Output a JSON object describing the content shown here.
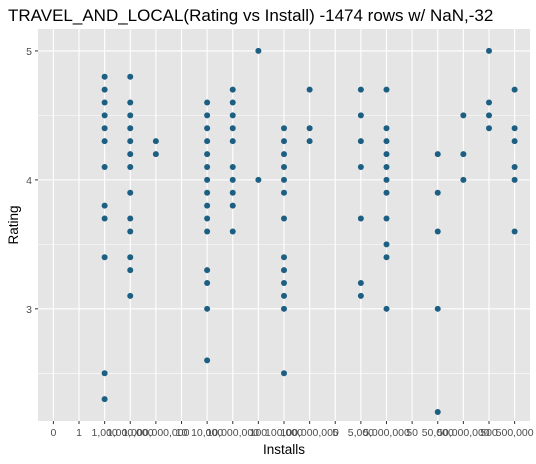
{
  "chart_data": {
    "type": "scatter",
    "title": "TRAVEL_AND_LOCAL(Rating vs Install) -1474 rows w/ NaN,-32",
    "xlabel": "Installs",
    "ylabel": "Rating",
    "x_categories": [
      "0",
      "1",
      "1,000",
      "1,000,000",
      "1,000,000,000",
      "10",
      "10,000",
      "10,000,000",
      "100",
      "100,000",
      "100,000,000",
      "5",
      "5,000",
      "5,000,000",
      "50",
      "50,000",
      "50,000,000",
      "500",
      "500,000"
    ],
    "y_ticks": [
      "3",
      "4",
      "5"
    ],
    "ylim": [
      2.13,
      5.17
    ],
    "grid": true,
    "point_color": "#1d5f82",
    "panel_color": "#e5e5e5",
    "grid_color": "#ffffff",
    "points": [
      {
        "x": "1,000",
        "y": [
          4.8,
          4.7,
          4.6,
          4.5,
          4.4,
          4.3,
          4.1,
          3.8,
          3.7,
          3.4,
          2.5,
          2.3
        ]
      },
      {
        "x": "1,000,000",
        "y": [
          4.8,
          4.6,
          4.5,
          4.4,
          4.3,
          4.2,
          4.1,
          3.9,
          3.7,
          3.6,
          3.4,
          3.3,
          3.1
        ]
      },
      {
        "x": "1,000,000,000",
        "y": [
          4.3,
          4.2
        ]
      },
      {
        "x": "10,000",
        "y": [
          4.6,
          4.5,
          4.4,
          4.3,
          4.2,
          4.1,
          4.0,
          3.9,
          3.8,
          3.7,
          3.6,
          3.3,
          3.2,
          3.0,
          2.6
        ]
      },
      {
        "x": "10,000,000",
        "y": [
          4.7,
          4.6,
          4.5,
          4.4,
          4.3,
          4.1,
          4.0,
          3.9,
          3.8,
          3.6
        ]
      },
      {
        "x": "100",
        "y": [
          5.0,
          4.0
        ]
      },
      {
        "x": "100,000",
        "y": [
          4.4,
          4.3,
          4.2,
          4.1,
          4.0,
          3.9,
          3.7,
          3.4,
          3.3,
          3.2,
          3.1,
          3.0,
          2.5
        ]
      },
      {
        "x": "100,000,000",
        "y": [
          4.7,
          4.4,
          4.3
        ]
      },
      {
        "x": "5,000",
        "y": [
          4.7,
          4.5,
          4.3,
          4.1,
          3.7,
          3.2,
          3.1
        ]
      },
      {
        "x": "5,000,000",
        "y": [
          4.7,
          4.4,
          4.3,
          4.2,
          4.1,
          4.0,
          3.9,
          3.7,
          3.5,
          3.4,
          3.0
        ]
      },
      {
        "x": "50,000",
        "y": [
          4.2,
          3.9,
          3.6,
          3.0,
          2.2
        ]
      },
      {
        "x": "50,000,000",
        "y": [
          4.5,
          4.2,
          4.0
        ]
      },
      {
        "x": "500",
        "y": [
          5.0,
          4.6,
          4.5,
          4.4
        ]
      },
      {
        "x": "500,000",
        "y": [
          4.7,
          4.4,
          4.3,
          4.1,
          4.0,
          3.6
        ]
      }
    ]
  }
}
